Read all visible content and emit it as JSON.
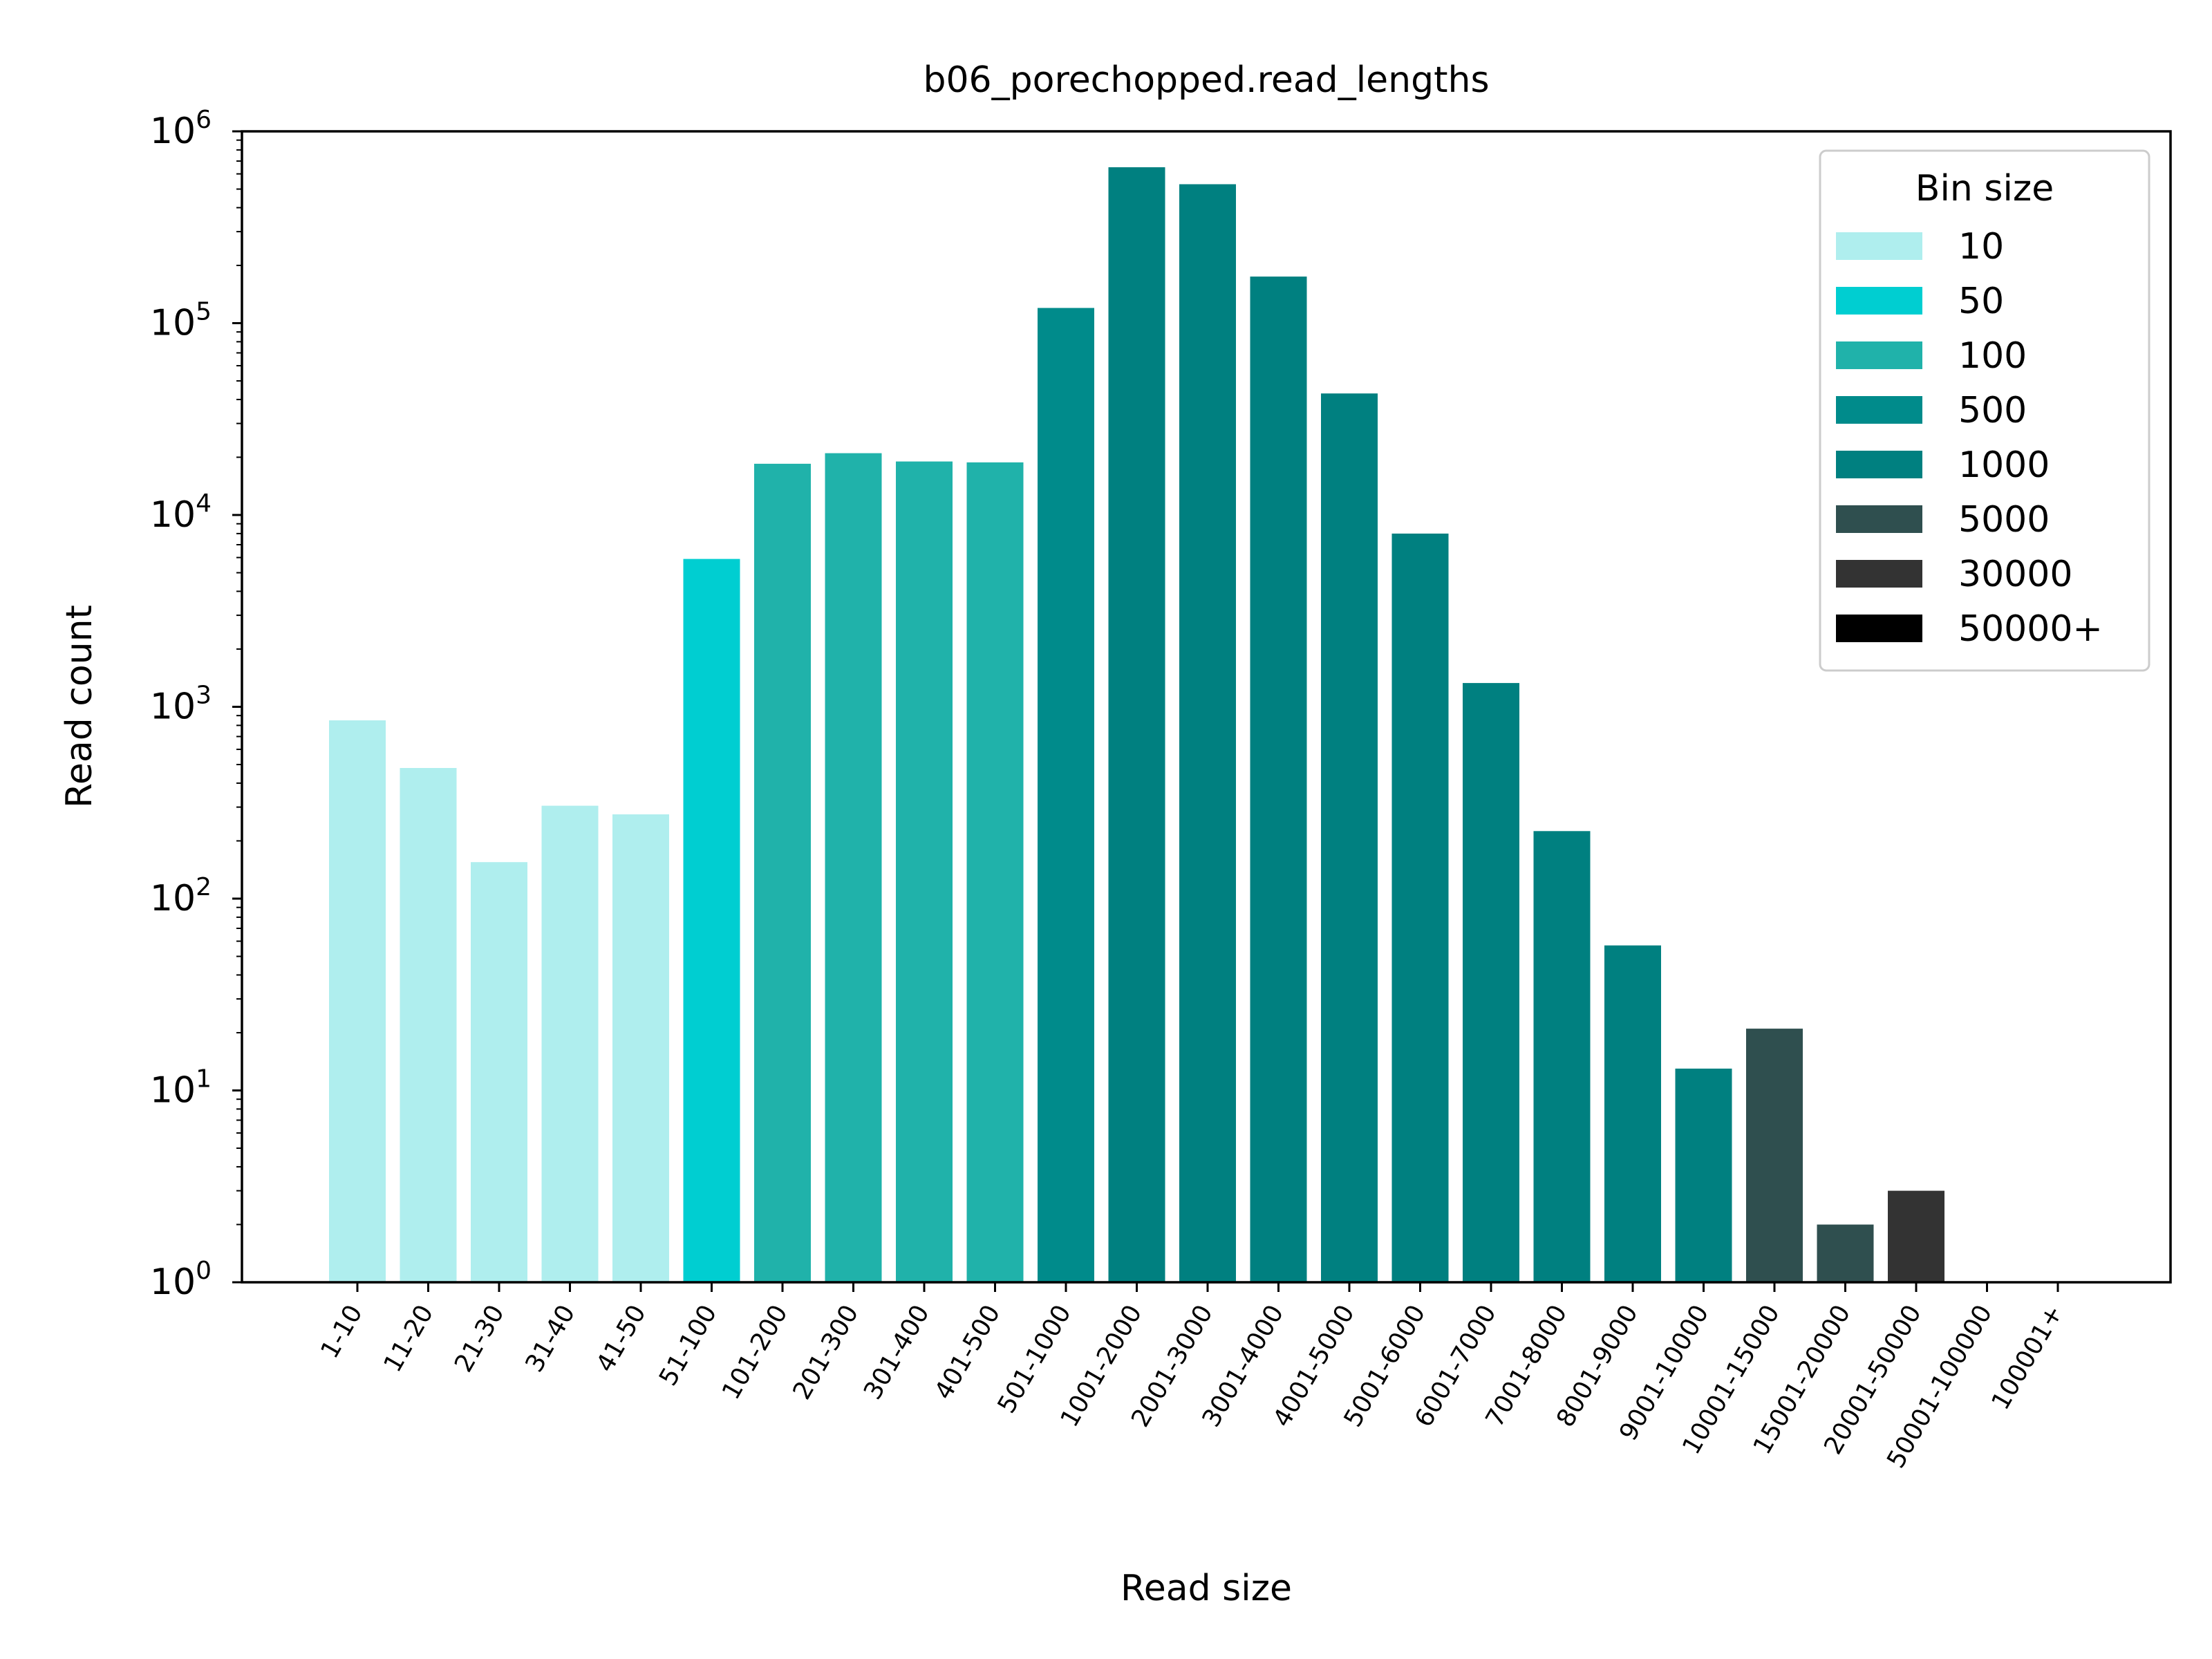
{
  "chart_data": {
    "type": "bar",
    "title": "b06_porechopped.read_lengths",
    "xlabel": "Read size",
    "ylabel": "Read count",
    "yscale": "log",
    "ylim": [
      1,
      1000000
    ],
    "yticks": [
      {
        "value": 1,
        "base": "10",
        "exp": "0"
      },
      {
        "value": 10,
        "base": "10",
        "exp": "1"
      },
      {
        "value": 100,
        "base": "10",
        "exp": "2"
      },
      {
        "value": 1000,
        "base": "10",
        "exp": "3"
      },
      {
        "value": 10000,
        "base": "10",
        "exp": "4"
      },
      {
        "value": 100000,
        "base": "10",
        "exp": "5"
      },
      {
        "value": 1000000,
        "base": "10",
        "exp": "6"
      }
    ],
    "categories": [
      "1-10",
      "11-20",
      "21-30",
      "31-40",
      "41-50",
      "51-100",
      "101-200",
      "201-300",
      "301-400",
      "401-500",
      "501-1000",
      "1001-2000",
      "2001-3000",
      "3001-4000",
      "4001-5000",
      "5001-6000",
      "6001-7000",
      "7001-8000",
      "8001-9000",
      "9001-10000",
      "10001-15000",
      "15001-20000",
      "20001-50000",
      "50001-100000",
      "100001+"
    ],
    "values": [
      850,
      480,
      155,
      305,
      275,
      5900,
      18500,
      21000,
      19000,
      18800,
      120000,
      650000,
      530000,
      175000,
      43000,
      8000,
      1330,
      225,
      57,
      13,
      21,
      2,
      3,
      0,
      0
    ],
    "bin_group": [
      "10",
      "10",
      "10",
      "10",
      "10",
      "50",
      "100",
      "100",
      "100",
      "100",
      "500",
      "1000",
      "1000",
      "1000",
      "1000",
      "1000",
      "1000",
      "1000",
      "1000",
      "1000",
      "5000",
      "5000",
      "30000",
      "50000+",
      "50000+"
    ],
    "legend": {
      "title": "Bin size",
      "position": "top-right",
      "entries": [
        {
          "label": "10",
          "color": "#afeeee"
        },
        {
          "label": "50",
          "color": "#00ced1"
        },
        {
          "label": "100",
          "color": "#20b2aa"
        },
        {
          "label": "500",
          "color": "#008b8b"
        },
        {
          "label": "1000",
          "color": "#008080"
        },
        {
          "label": "5000",
          "color": "#2f4f4f"
        },
        {
          "label": "30000",
          "color": "#333333"
        },
        {
          "label": "50000+",
          "color": "#000000"
        }
      ]
    },
    "grid": false
  }
}
